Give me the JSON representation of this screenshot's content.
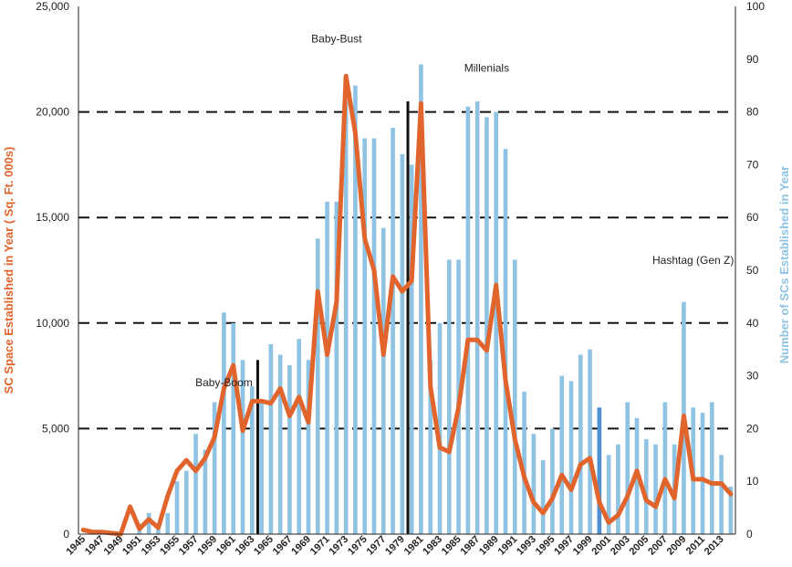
{
  "chart_data": {
    "type": "bar+line",
    "title": "",
    "x": [
      1945,
      1946,
      1947,
      1948,
      1949,
      1950,
      1951,
      1952,
      1953,
      1954,
      1955,
      1956,
      1957,
      1958,
      1959,
      1960,
      1961,
      1962,
      1963,
      1964,
      1965,
      1966,
      1967,
      1968,
      1969,
      1970,
      1971,
      1972,
      1973,
      1974,
      1975,
      1976,
      1977,
      1978,
      1979,
      1980,
      1981,
      1982,
      1983,
      1984,
      1985,
      1986,
      1987,
      1988,
      1989,
      1990,
      1991,
      1992,
      1993,
      1994,
      1995,
      1996,
      1997,
      1998,
      1999,
      2000,
      2001,
      2002,
      2003,
      2004,
      2005,
      2006,
      2007,
      2008,
      2009,
      2010,
      2011,
      2012,
      2013,
      2014
    ],
    "x_tick_labels": [
      "1945",
      "1947",
      "1949",
      "1951",
      "1953",
      "1955",
      "1957",
      "1959",
      "1961",
      "1963",
      "1965",
      "1967",
      "1969",
      "1971",
      "1973",
      "1975",
      "1977",
      "1979",
      "1981",
      "1983",
      "1985",
      "1987",
      "1989",
      "1991",
      "1993",
      "1995",
      "1997",
      "1999",
      "2001",
      "2003",
      "2005",
      "2007",
      "2009",
      "2011",
      "2013"
    ],
    "series": [
      {
        "name": "Number of SCs Established in Year",
        "type": "bar",
        "axis": "right",
        "color": "#8fc3e3",
        "values": [
          0,
          0,
          0,
          0,
          0,
          0,
          2,
          4,
          2,
          4,
          10,
          12,
          19,
          16,
          25,
          42,
          40,
          33,
          28,
          25,
          36,
          34,
          32,
          37,
          33,
          56,
          63,
          63,
          82,
          85,
          75,
          75,
          58,
          77,
          72,
          70,
          89,
          33,
          40,
          52,
          52,
          81,
          82,
          79,
          80,
          73,
          52,
          27,
          19,
          14,
          20,
          30,
          29,
          34,
          35,
          24,
          15,
          17,
          25,
          22,
          18,
          17,
          25,
          17,
          44,
          24,
          23,
          25,
          15,
          9
        ]
      },
      {
        "name": "SC Space Established in Year (Sq. Ft. 000s)",
        "type": "line",
        "axis": "left",
        "color": "#e0642c",
        "values": [
          200,
          100,
          100,
          50,
          0,
          1300,
          250,
          700,
          300,
          1800,
          3000,
          3500,
          3000,
          3600,
          4600,
          6900,
          8000,
          4900,
          6300,
          6300,
          6200,
          6900,
          5600,
          6500,
          5300,
          11500,
          8500,
          11000,
          21700,
          19000,
          14000,
          12500,
          8500,
          12200,
          11500,
          12000,
          20400,
          7000,
          4100,
          3900,
          6000,
          9200,
          9200,
          8700,
          11800,
          7300,
          4500,
          2700,
          1500,
          1000,
          1700,
          2800,
          2100,
          3300,
          3600,
          1500,
          550,
          900,
          1800,
          3000,
          1600,
          1300,
          2600,
          1700,
          5600,
          2600,
          2600,
          2400,
          2400,
          1900
        ]
      }
    ],
    "left_axis": {
      "label": "SC Space Established in Year ( Sq. Ft. 000s)",
      "ylim": [
        0,
        25000
      ],
      "ticks": [
        "0",
        "5,000",
        "10,000",
        "15,000",
        "20,000",
        "25,000"
      ]
    },
    "right_axis": {
      "label": "Number of SCs Established in Year",
      "ylim": [
        0,
        100
      ],
      "ticks": [
        "0",
        "10",
        "20",
        "30",
        "40",
        "50",
        "60",
        "70",
        "80",
        "90",
        "100"
      ]
    },
    "dashed_gridlines_left_values": [
      5000,
      10000,
      15000,
      20000
    ],
    "era_dividers": [
      1964,
      1980
    ],
    "highlight_bar": {
      "year": 2000,
      "color": "#4f8fd0"
    },
    "annotations": [
      {
        "text": "Baby-Boom",
        "x": 1960,
        "y": 7000
      },
      {
        "text": "Baby-Bust",
        "x": 1972,
        "y": 23300
      },
      {
        "text": "Millenials",
        "x": 1988,
        "y": 21900
      },
      {
        "text": "Hashtag (Gen Z)",
        "x": 2010,
        "y": 12800
      }
    ]
  }
}
